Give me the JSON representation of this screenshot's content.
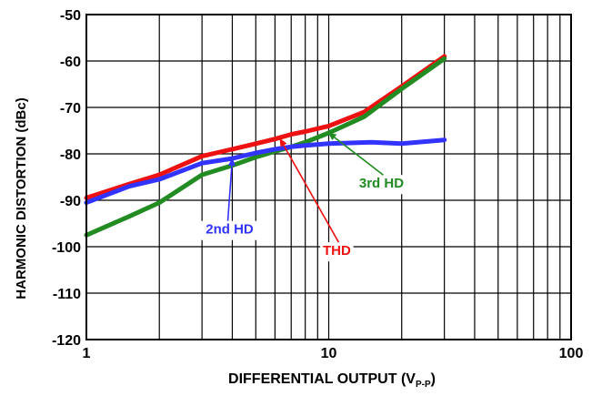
{
  "chart_data": {
    "type": "line",
    "title": "",
    "xlabel": "DIFFERENTIAL OUTPUT (V",
    "xlabel_sub": "P-P",
    "xlabel_close": ")",
    "ylabel": "HARMONIC DISTORTION (dBc)",
    "xscale": "log",
    "xlim": [
      1,
      100
    ],
    "ylim": [
      -120,
      -50
    ],
    "grid": true,
    "x_tick_labels": [
      {
        "value": 1,
        "label": "1"
      },
      {
        "value": 10,
        "label": "10"
      },
      {
        "value": 100,
        "label": "100"
      }
    ],
    "y_tick_labels": [
      {
        "value": -50,
        "label": "-50"
      },
      {
        "value": -60,
        "label": "-60"
      },
      {
        "value": -70,
        "label": "-70"
      },
      {
        "value": -80,
        "label": "-80"
      },
      {
        "value": -90,
        "label": "-90"
      },
      {
        "value": -100,
        "label": "-100"
      },
      {
        "value": -110,
        "label": "-110"
      },
      {
        "value": -120,
        "label": "-120"
      }
    ],
    "series": [
      {
        "name": "THD",
        "color": "#ee1111",
        "x": [
          1,
          1.5,
          2,
          3,
          4,
          5,
          6,
          7,
          8,
          10,
          14,
          20,
          30
        ],
        "y": [
          -89.5,
          -86.5,
          -84.5,
          -80.5,
          -79,
          -77.8,
          -76.8,
          -75.8,
          -75.2,
          -74,
          -71,
          -65.5,
          -59
        ]
      },
      {
        "name": "3rd HD",
        "color": "#228b22",
        "x": [
          1,
          1.5,
          2,
          3,
          4,
          5,
          6,
          7,
          8,
          10,
          14,
          20,
          30
        ],
        "y": [
          -97.5,
          -93.5,
          -90.5,
          -84.5,
          -82.5,
          -80.7,
          -79.5,
          -78.5,
          -77.5,
          -75.5,
          -72,
          -66,
          -59.5
        ]
      },
      {
        "name": "2nd HD",
        "color": "#3333ff",
        "x": [
          1,
          1.5,
          2,
          3,
          4,
          5,
          6,
          7,
          8,
          10,
          15,
          20,
          30
        ],
        "y": [
          -90.5,
          -87,
          -85.5,
          -82,
          -81,
          -79.8,
          -79,
          -78.5,
          -78.2,
          -77.8,
          -77.5,
          -77.8,
          -77
        ]
      }
    ],
    "annotations": [
      {
        "text": "THD",
        "color": "#ee1111",
        "label_x": 10.8,
        "label_y": -101.8,
        "arrow_to_x": 6.3,
        "arrow_to_y": -76.8
      },
      {
        "text": "3rd HD",
        "color": "#228b22",
        "label_x": 16.5,
        "label_y": -87.3,
        "arrow_to_x": 10.0,
        "arrow_to_y": -75.5
      },
      {
        "text": "2nd HD",
        "color": "#3333ff",
        "label_x": 3.9,
        "label_y": -97.2,
        "arrow_to_x": 4.0,
        "arrow_to_y": -81.0
      }
    ]
  }
}
